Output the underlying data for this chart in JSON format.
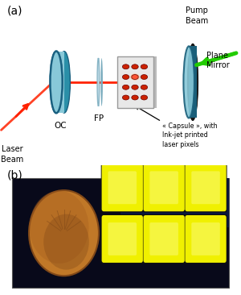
{
  "fig_width": 3.0,
  "fig_height": 3.66,
  "dpi": 100,
  "bg_color": "#ffffff",
  "label_a": "(a)",
  "label_b": "(b)",
  "label_fontsize": 10,
  "text_laser_beam": "Laser\nBeam",
  "text_oc": "OC",
  "text_fp": "FP",
  "text_capsule": "« Capsule », with\nInk-jet printed\nlaser pixels",
  "text_pump_beam": "Pump\nBeam",
  "text_plane_mirror": "Plane\nMirror",
  "oc_color": "#88c8d8",
  "oc_edge_color": "#2a8fa8",
  "oc_dark_edge": "#1a6080",
  "fp_color": "#c8e0ec",
  "fp_edge_color": "#7aacbe",
  "mirror_color": "#88c8d8",
  "mirror_edge_color": "#1a5f7a",
  "mirror_rim_color": "#181818",
  "capsule_bg": "#e8e8e8",
  "capsule_dot_color": "#cc2200",
  "capsule_dot_bright": "#ff5533",
  "red_beam_color": "#ff2200",
  "green_beam_color": "#22cc00",
  "photo_bg": "#08091a",
  "photo_bg2": "#0a1530",
  "coin_color": "#c07828",
  "coin_mid": "#a86020",
  "coin_dark": "#804818",
  "capsule_yellow": "#f0f000",
  "capsule_yellow_bright": "#fefea0",
  "capsule_sep": "#101010"
}
